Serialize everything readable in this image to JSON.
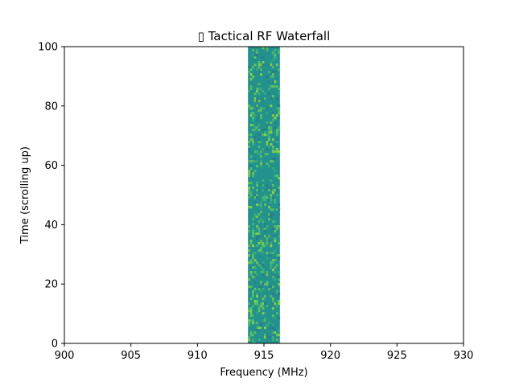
{
  "chart_data": {
    "type": "heatmap",
    "title": "▯ Tactical RF Waterfall",
    "xlabel": "Frequency (MHz)",
    "ylabel": "Time (scrolling up)",
    "xlim": [
      900,
      930
    ],
    "ylim": [
      0,
      100
    ],
    "xticks": [
      900,
      905,
      910,
      915,
      920,
      925,
      930
    ],
    "yticks": [
      0,
      20,
      40,
      60,
      80,
      100
    ],
    "band": {
      "x_start": 913.8,
      "x_end": 916.2,
      "y_start": 0,
      "y_end": 100
    },
    "colormap": "viridis",
    "base_color": "#23918c",
    "highlight_colors": [
      "#3fb97a",
      "#5fca61",
      "#8fd744",
      "#2a788e"
    ],
    "grid": false,
    "legend": "none"
  }
}
